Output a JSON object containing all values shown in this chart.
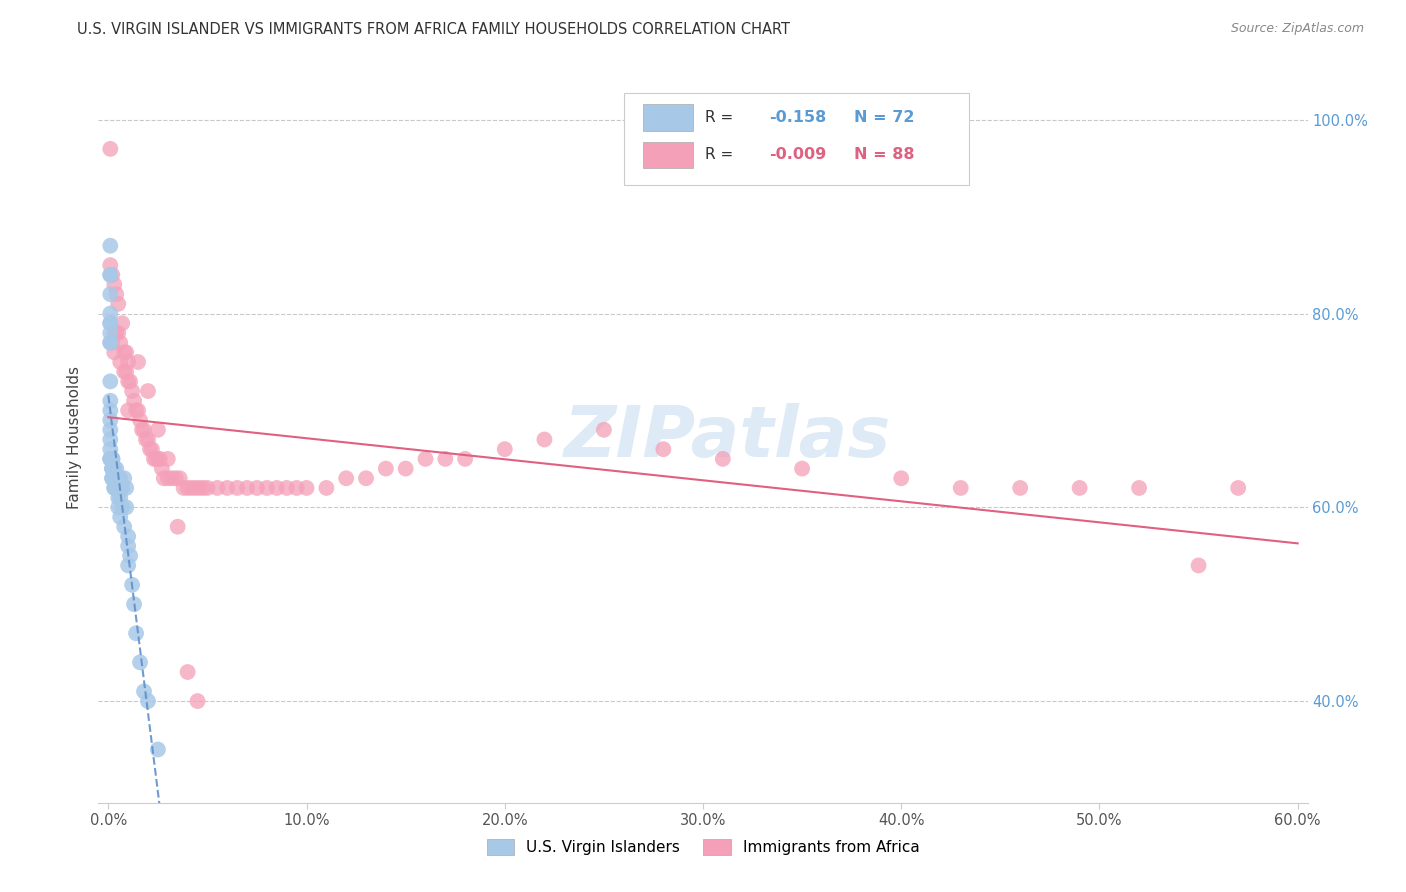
{
  "title": "U.S. VIRGIN ISLANDER VS IMMIGRANTS FROM AFRICA FAMILY HOUSEHOLDS CORRELATION CHART",
  "source": "Source: ZipAtlas.com",
  "xlim": [
    -0.005,
    0.605
  ],
  "ylim": [
    0.295,
    1.05
  ],
  "ylabel": "Family Households",
  "legend_label1": "U.S. Virgin Islanders",
  "legend_label2": "Immigrants from Africa",
  "R1": -0.158,
  "N1": 72,
  "R2": -0.009,
  "N2": 88,
  "color1": "#a8c8e8",
  "color2": "#f4a0b8",
  "trendline1_color": "#6090c8",
  "trendline2_color": "#e06080",
  "watermark": "ZIPatlas",
  "watermark_color": "#c8ddf0",
  "scatter1_x": [
    0.001,
    0.001,
    0.001,
    0.001,
    0.001,
    0.001,
    0.001,
    0.001,
    0.001,
    0.001,
    0.001,
    0.001,
    0.001,
    0.001,
    0.001,
    0.001,
    0.001,
    0.001,
    0.001,
    0.001,
    0.002,
    0.002,
    0.002,
    0.002,
    0.002,
    0.002,
    0.002,
    0.002,
    0.002,
    0.002,
    0.002,
    0.002,
    0.003,
    0.003,
    0.003,
    0.003,
    0.003,
    0.003,
    0.003,
    0.003,
    0.004,
    0.004,
    0.004,
    0.004,
    0.004,
    0.004,
    0.004,
    0.005,
    0.005,
    0.005,
    0.005,
    0.006,
    0.006,
    0.006,
    0.006,
    0.007,
    0.007,
    0.008,
    0.008,
    0.009,
    0.009,
    0.01,
    0.01,
    0.01,
    0.011,
    0.012,
    0.013,
    0.014,
    0.016,
    0.018,
    0.02,
    0.025
  ],
  "scatter1_y": [
    0.87,
    0.84,
    0.84,
    0.82,
    0.8,
    0.79,
    0.79,
    0.78,
    0.77,
    0.77,
    0.73,
    0.71,
    0.7,
    0.69,
    0.68,
    0.67,
    0.66,
    0.65,
    0.65,
    0.65,
    0.65,
    0.65,
    0.65,
    0.65,
    0.64,
    0.64,
    0.64,
    0.64,
    0.64,
    0.63,
    0.63,
    0.63,
    0.64,
    0.63,
    0.63,
    0.63,
    0.63,
    0.63,
    0.62,
    0.62,
    0.64,
    0.63,
    0.63,
    0.62,
    0.62,
    0.62,
    0.62,
    0.63,
    0.62,
    0.61,
    0.6,
    0.63,
    0.62,
    0.61,
    0.59,
    0.62,
    0.6,
    0.63,
    0.58,
    0.62,
    0.6,
    0.57,
    0.56,
    0.54,
    0.55,
    0.52,
    0.5,
    0.47,
    0.44,
    0.41,
    0.4,
    0.35
  ],
  "scatter2_x": [
    0.001,
    0.001,
    0.002,
    0.002,
    0.003,
    0.003,
    0.003,
    0.004,
    0.004,
    0.005,
    0.005,
    0.006,
    0.006,
    0.007,
    0.008,
    0.008,
    0.009,
    0.009,
    0.01,
    0.01,
    0.011,
    0.012,
    0.013,
    0.014,
    0.015,
    0.016,
    0.017,
    0.018,
    0.019,
    0.02,
    0.021,
    0.022,
    0.023,
    0.024,
    0.025,
    0.026,
    0.027,
    0.028,
    0.03,
    0.032,
    0.034,
    0.036,
    0.038,
    0.04,
    0.042,
    0.044,
    0.046,
    0.048,
    0.05,
    0.055,
    0.06,
    0.065,
    0.07,
    0.075,
    0.08,
    0.085,
    0.09,
    0.095,
    0.1,
    0.11,
    0.12,
    0.13,
    0.14,
    0.15,
    0.16,
    0.17,
    0.18,
    0.2,
    0.22,
    0.25,
    0.28,
    0.31,
    0.35,
    0.4,
    0.43,
    0.46,
    0.49,
    0.52,
    0.55,
    0.57,
    0.01,
    0.015,
    0.02,
    0.025,
    0.03,
    0.035,
    0.04,
    0.045
  ],
  "scatter2_y": [
    0.97,
    0.85,
    0.84,
    0.77,
    0.83,
    0.78,
    0.76,
    0.82,
    0.78,
    0.81,
    0.78,
    0.77,
    0.75,
    0.79,
    0.76,
    0.74,
    0.76,
    0.74,
    0.75,
    0.73,
    0.73,
    0.72,
    0.71,
    0.7,
    0.7,
    0.69,
    0.68,
    0.68,
    0.67,
    0.67,
    0.66,
    0.66,
    0.65,
    0.65,
    0.65,
    0.65,
    0.64,
    0.63,
    0.63,
    0.63,
    0.63,
    0.63,
    0.62,
    0.62,
    0.62,
    0.62,
    0.62,
    0.62,
    0.62,
    0.62,
    0.62,
    0.62,
    0.62,
    0.62,
    0.62,
    0.62,
    0.62,
    0.62,
    0.62,
    0.62,
    0.63,
    0.63,
    0.64,
    0.64,
    0.65,
    0.65,
    0.65,
    0.66,
    0.67,
    0.68,
    0.66,
    0.65,
    0.64,
    0.63,
    0.62,
    0.62,
    0.62,
    0.62,
    0.54,
    0.62,
    0.7,
    0.75,
    0.72,
    0.68,
    0.65,
    0.58,
    0.43,
    0.4
  ]
}
